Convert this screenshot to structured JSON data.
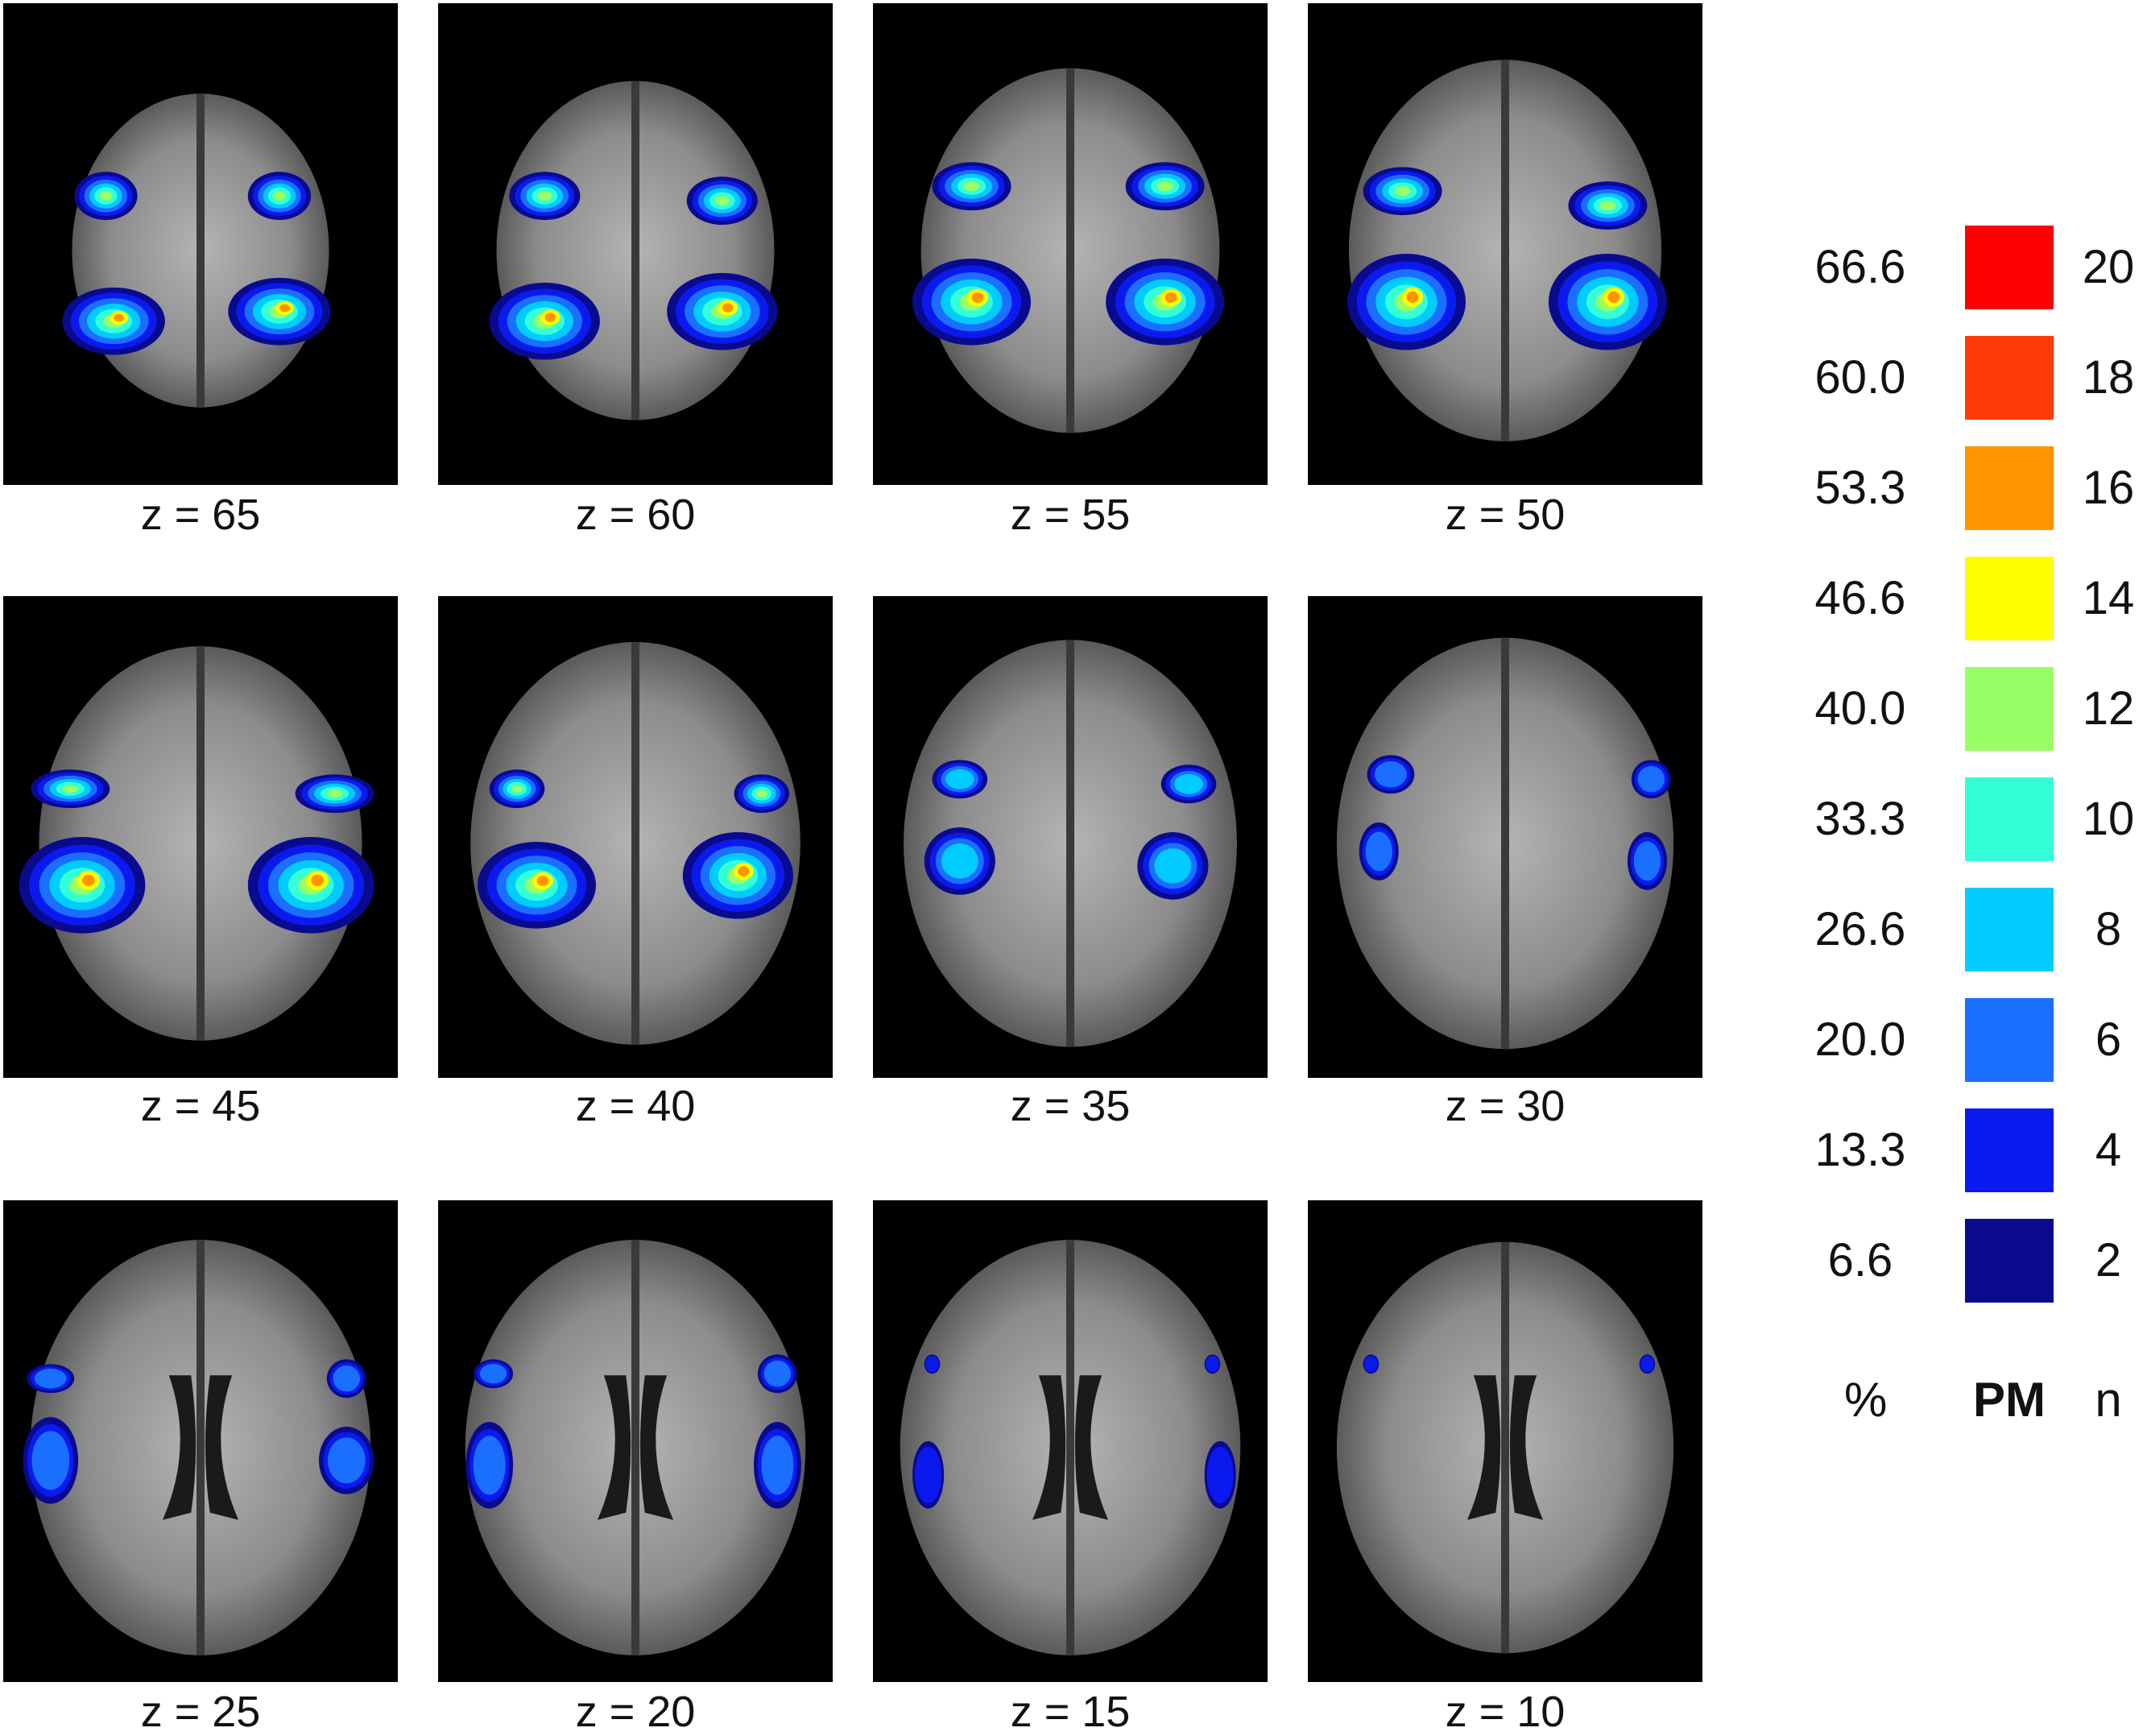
{
  "slices": [
    {
      "label": "z = 65",
      "size": 0.74
    },
    {
      "label": "z = 60",
      "size": 0.8
    },
    {
      "label": "z = 55",
      "size": 0.86
    },
    {
      "label": "z = 50",
      "size": 0.9
    },
    {
      "label": "z = 45",
      "size": 0.93
    },
    {
      "label": "z = 40",
      "size": 0.95
    },
    {
      "label": "z = 35",
      "size": 0.96
    },
    {
      "label": "z = 30",
      "size": 0.97
    },
    {
      "label": "z = 25",
      "size": 0.98
    },
    {
      "label": "z = 20",
      "size": 0.98
    },
    {
      "label": "z = 15",
      "size": 0.98
    },
    {
      "label": "z = 10",
      "size": 0.97
    }
  ],
  "legend": {
    "header_pct": "%",
    "header_pm": "PM",
    "header_n": "n",
    "rows": [
      {
        "pct": "66.6",
        "n": "20",
        "color": "#ff0000"
      },
      {
        "pct": "60.0",
        "n": "18",
        "color": "#ff3b0a"
      },
      {
        "pct": "53.3",
        "n": "16",
        "color": "#ff9400"
      },
      {
        "pct": "46.6",
        "n": "14",
        "color": "#ffff00"
      },
      {
        "pct": "40.0",
        "n": "12",
        "color": "#99ff66"
      },
      {
        "pct": "33.3",
        "n": "10",
        "color": "#33ffd6"
      },
      {
        "pct": "26.6",
        "n": "8",
        "color": "#00ccff"
      },
      {
        "pct": "20.0",
        "n": "6",
        "color": "#1a6fff"
      },
      {
        "pct": "13.3",
        "n": "4",
        "color": "#0a1aef"
      },
      {
        "pct": "6.6",
        "n": "2",
        "color": "#0a0a8f"
      }
    ]
  }
}
